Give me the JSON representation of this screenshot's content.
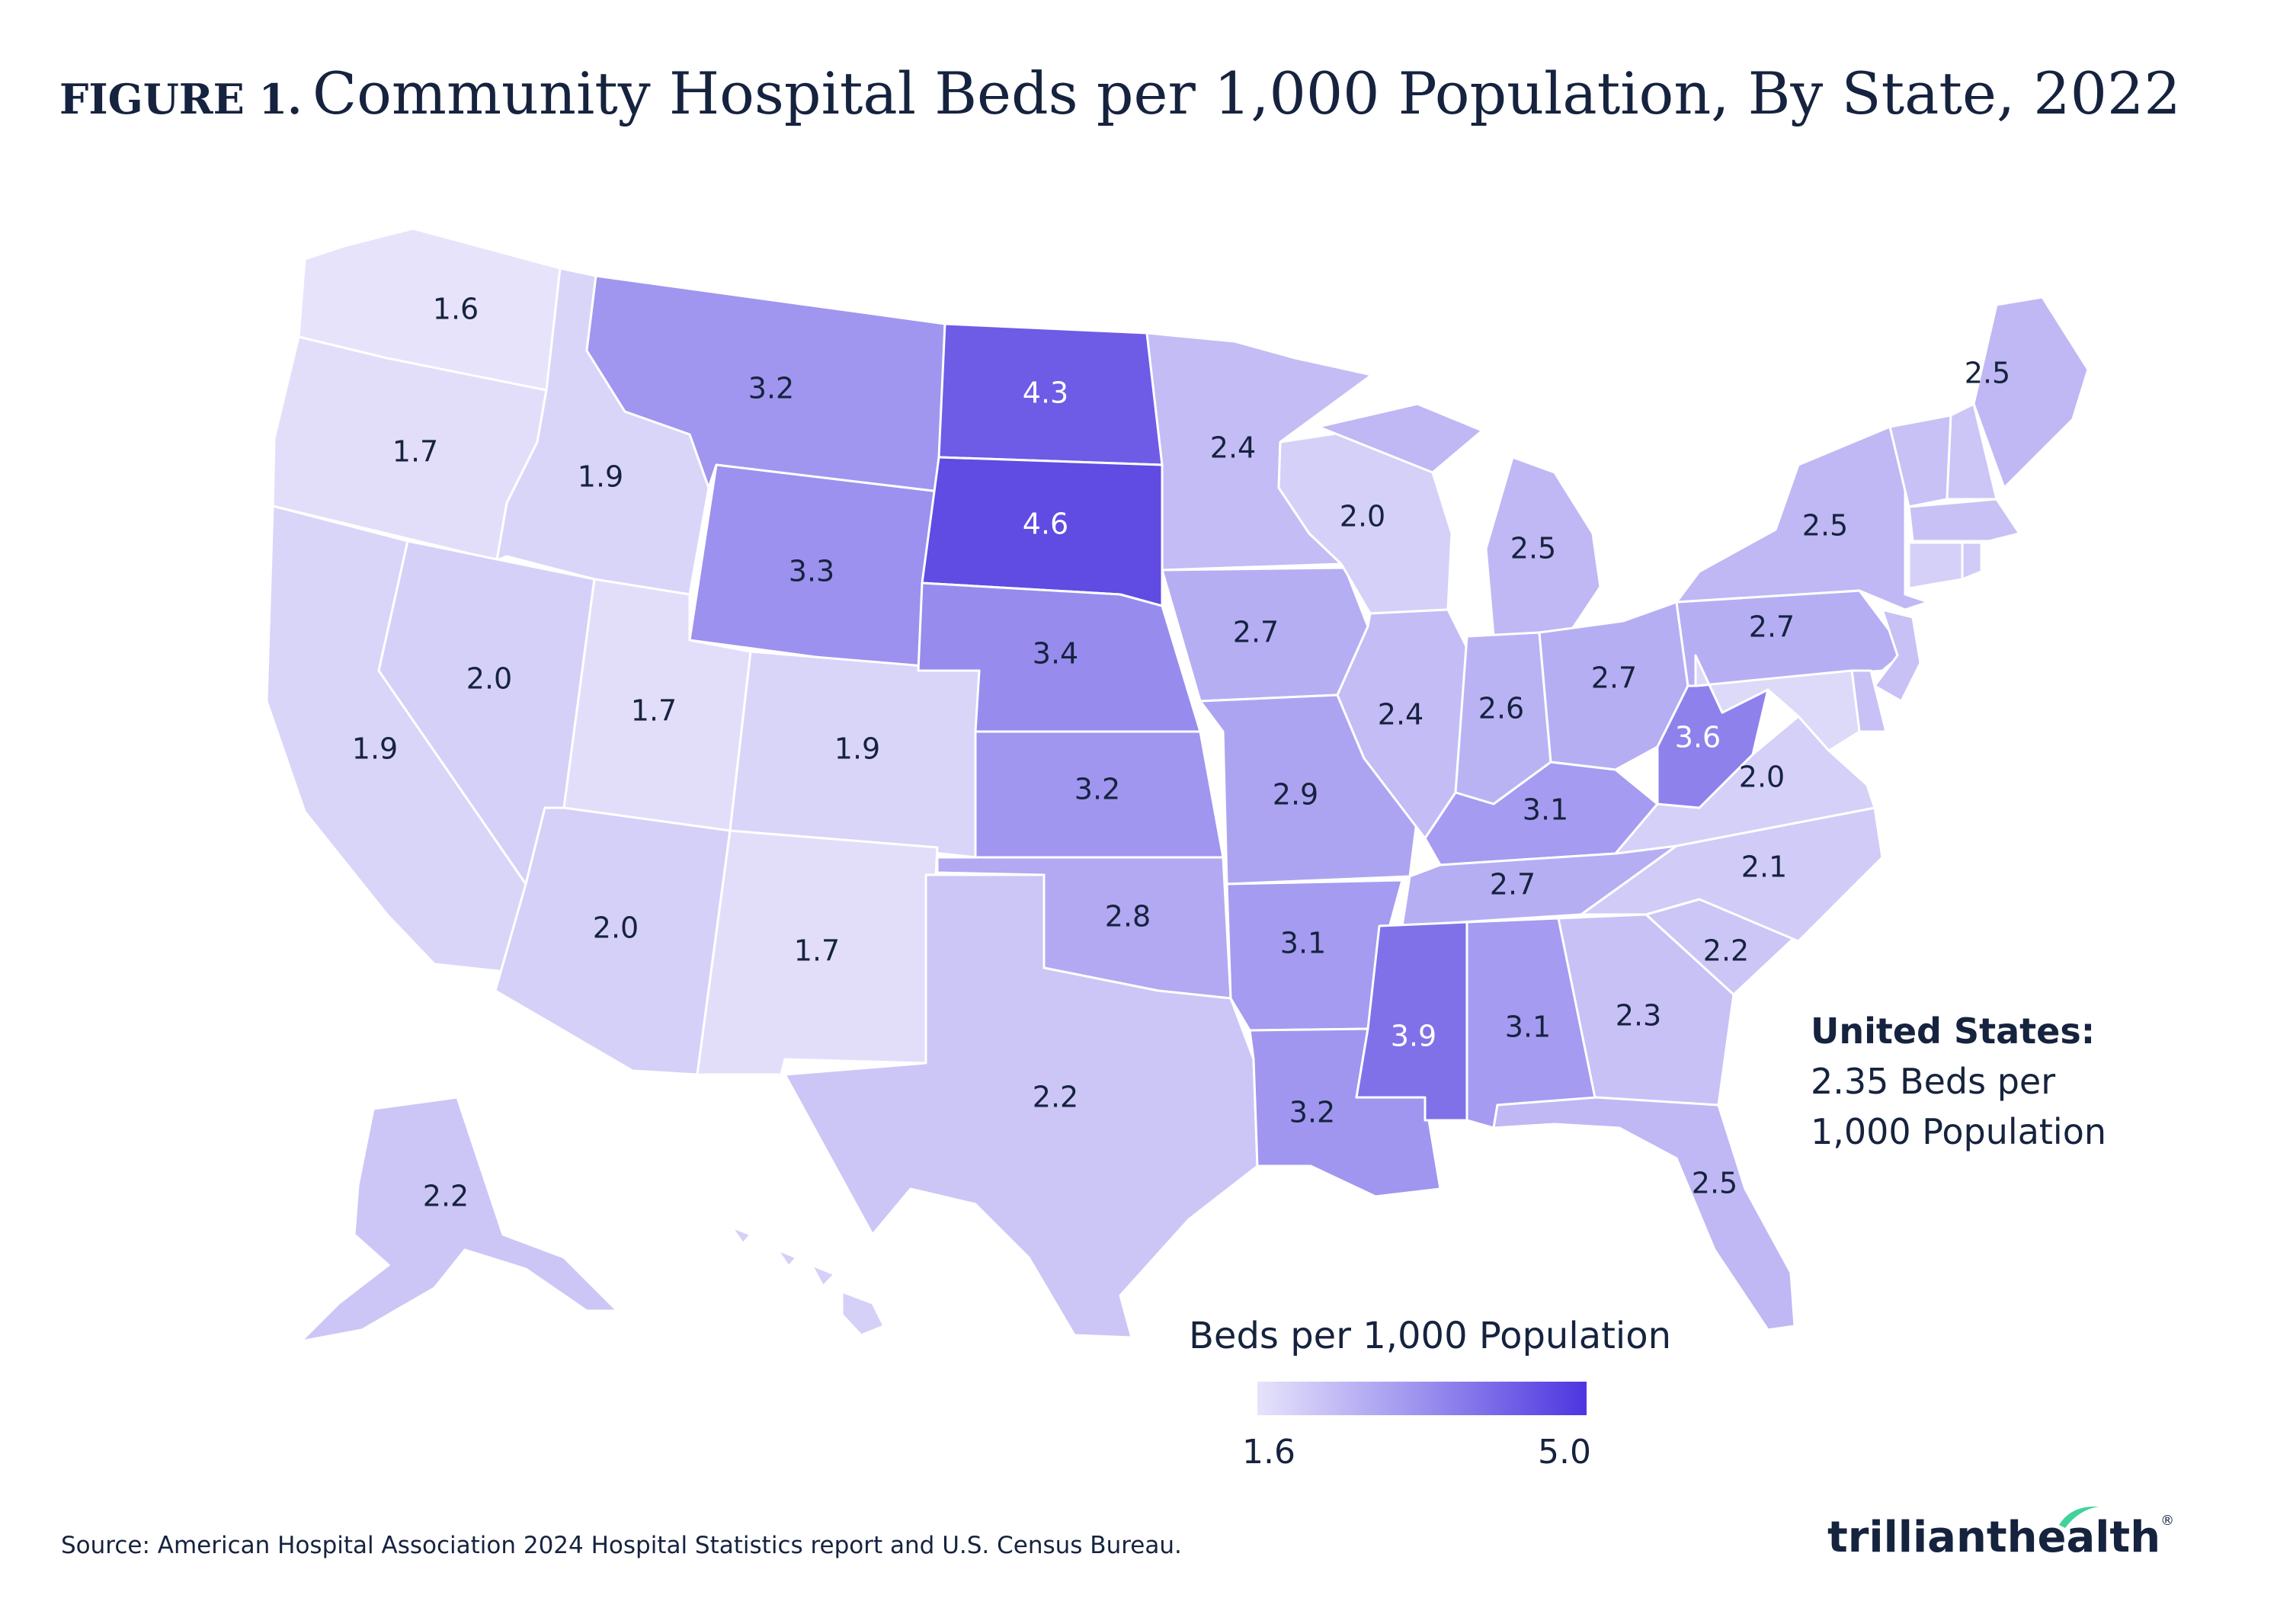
{
  "title": {
    "prefix": "FIGURE 1.",
    "main": "Community Hospital Beds per 1,000 Population, By State, 2022"
  },
  "map_data": {
    "type": "choropleth",
    "legend": {
      "title": "Beds per 1,000 Population",
      "min": "1.6",
      "max": "5.0",
      "min_value": 1.6,
      "max_value": 5.0
    },
    "colors": {
      "low": "#e6e3fb",
      "mid": "#9c91ee",
      "high": "#4d35e0",
      "dark_label": "#16233f",
      "light_label": "#ffffff"
    },
    "states": [
      {
        "id": "WA",
        "value": 1.6,
        "label": "1.6"
      },
      {
        "id": "OR",
        "value": 1.7,
        "label": "1.7"
      },
      {
        "id": "CA",
        "value": 1.9,
        "label": "1.9"
      },
      {
        "id": "ID",
        "value": 1.9,
        "label": "1.9"
      },
      {
        "id": "NV",
        "value": 2.0,
        "label": "2.0"
      },
      {
        "id": "MT",
        "value": 3.2,
        "label": "3.2"
      },
      {
        "id": "WY",
        "value": 3.3,
        "label": "3.3"
      },
      {
        "id": "UT",
        "value": 1.7,
        "label": "1.7"
      },
      {
        "id": "CO",
        "value": 1.9,
        "label": "1.9"
      },
      {
        "id": "AZ",
        "value": 2.0,
        "label": "2.0"
      },
      {
        "id": "NM",
        "value": 1.7,
        "label": "1.7"
      },
      {
        "id": "ND",
        "value": 4.3,
        "label": "4.3"
      },
      {
        "id": "SD",
        "value": 4.6,
        "label": "4.6"
      },
      {
        "id": "NE",
        "value": 3.4,
        "label": "3.4"
      },
      {
        "id": "KS",
        "value": 3.2,
        "label": "3.2"
      },
      {
        "id": "OK",
        "value": 2.8,
        "label": "2.8"
      },
      {
        "id": "TX",
        "value": 2.2,
        "label": "2.2"
      },
      {
        "id": "MN",
        "value": 2.4,
        "label": "2.4"
      },
      {
        "id": "IA",
        "value": 2.7,
        "label": "2.7"
      },
      {
        "id": "MO",
        "value": 2.9,
        "label": "2.9"
      },
      {
        "id": "AR",
        "value": 3.1,
        "label": "3.1"
      },
      {
        "id": "LA",
        "value": 3.2,
        "label": "3.2"
      },
      {
        "id": "WI",
        "value": 2.0,
        "label": "2.0"
      },
      {
        "id": "IL",
        "value": 2.4,
        "label": "2.4"
      },
      {
        "id": "MI",
        "value": 2.5,
        "label": "2.5"
      },
      {
        "id": "IN",
        "value": 2.6,
        "label": "2.6"
      },
      {
        "id": "OH",
        "value": 2.7,
        "label": "2.7"
      },
      {
        "id": "KY",
        "value": 3.1,
        "label": "3.1"
      },
      {
        "id": "TN",
        "value": 2.7,
        "label": "2.7"
      },
      {
        "id": "MS",
        "value": 3.9,
        "label": "3.9"
      },
      {
        "id": "AL",
        "value": 3.1,
        "label": "3.1"
      },
      {
        "id": "GA",
        "value": 2.3,
        "label": "2.3"
      },
      {
        "id": "FL",
        "value": 2.5,
        "label": "2.5"
      },
      {
        "id": "SC",
        "value": 2.2,
        "label": "2.2"
      },
      {
        "id": "NC",
        "value": 2.1,
        "label": "2.1"
      },
      {
        "id": "VA",
        "value": 2.0,
        "label": "2.0"
      },
      {
        "id": "WV",
        "value": 3.6,
        "label": "3.6"
      },
      {
        "id": "PA",
        "value": 2.7,
        "label": "2.7"
      },
      {
        "id": "NY",
        "value": 2.5,
        "label": "2.5"
      },
      {
        "id": "ME",
        "value": 2.5,
        "label": "2.5"
      },
      {
        "id": "AK",
        "value": 2.2,
        "label": "2.2"
      },
      {
        "id": "VT",
        "value": 2.3
      },
      {
        "id": "NH",
        "value": 2.2
      },
      {
        "id": "MA",
        "value": 2.3
      },
      {
        "id": "CT",
        "value": 2.0
      },
      {
        "id": "RI",
        "value": 2.1
      },
      {
        "id": "NJ",
        "value": 2.3
      },
      {
        "id": "DE",
        "value": 2.3
      },
      {
        "id": "MD",
        "value": 1.8
      },
      {
        "id": "HI",
        "value": 2.0
      }
    ]
  },
  "us_summary": {
    "heading": "United States:",
    "line1": "2.35 Beds per",
    "line2": "1,000 Population"
  },
  "source": "Source: American Hospital Association 2024 Hospital Statistics report and U.S. Census Bureau.",
  "logo": {
    "part1": "trilliant",
    "part2": "health",
    "mark": "®",
    "accent_color": "#3fd39a"
  }
}
